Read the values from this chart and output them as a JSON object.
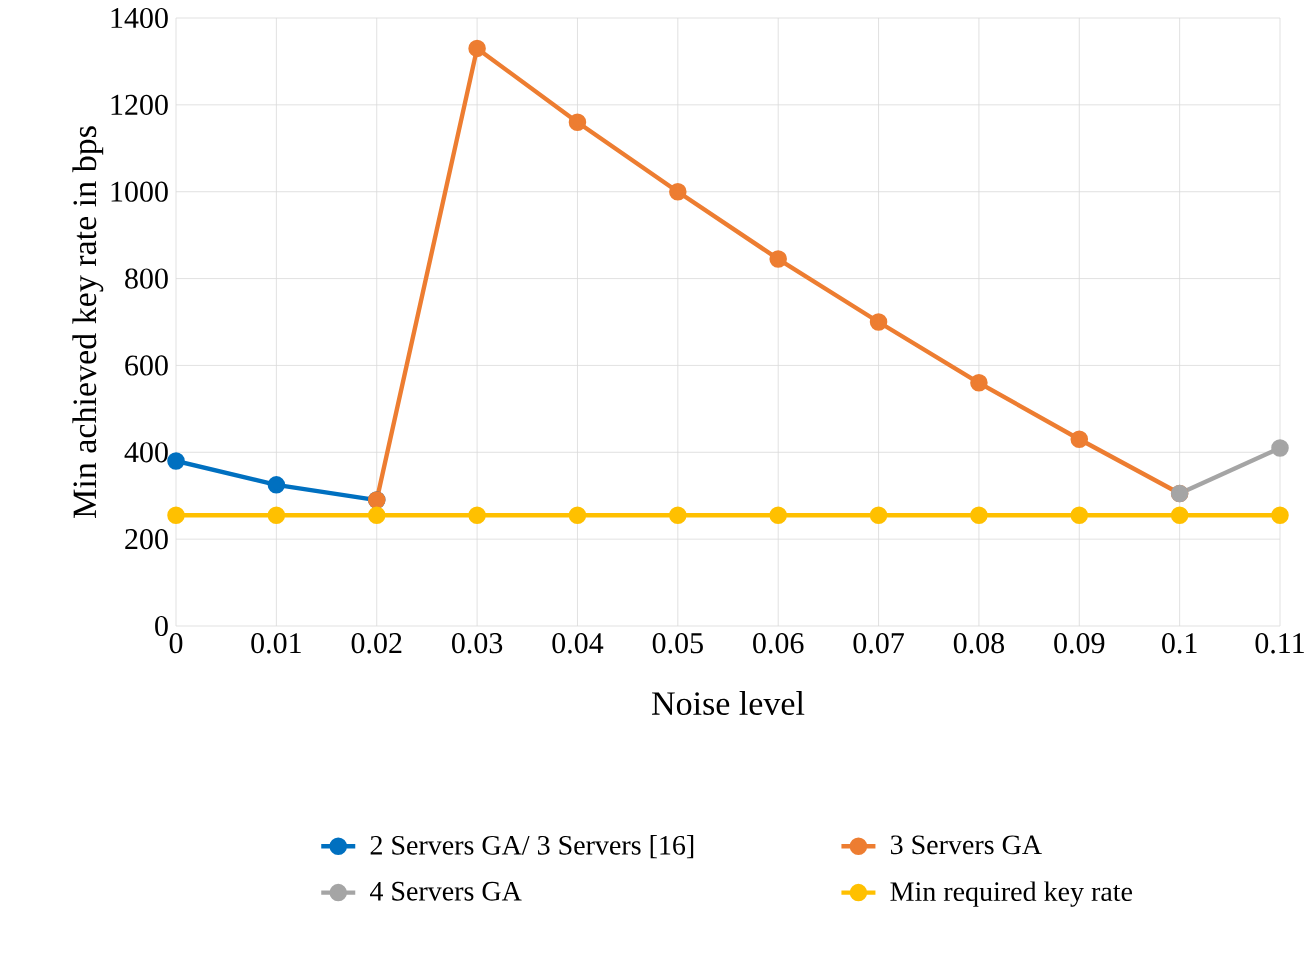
{
  "chart_data": {
    "type": "line",
    "xlabel": "Noise level",
    "ylabel": "Min achieved key rate in bps",
    "categories": [
      "0",
      "0.01",
      "0.02",
      "0.03",
      "0.04",
      "0.05",
      "0.06",
      "0.07",
      "0.08",
      "0.09",
      "0.1",
      "0.11"
    ],
    "series": [
      {
        "name": "2 Servers GA/ 3 Servers [16]",
        "color": "#0070c0",
        "values": [
          380,
          325,
          290,
          null,
          null,
          null,
          null,
          null,
          null,
          null,
          null,
          null
        ]
      },
      {
        "name": "3 Servers GA",
        "color": "#ed7d31",
        "values": [
          null,
          null,
          290,
          1330,
          1160,
          1000,
          845,
          700,
          560,
          430,
          305,
          null
        ]
      },
      {
        "name": "4 Servers GA",
        "color": "#a5a5a5",
        "values": [
          null,
          null,
          null,
          null,
          null,
          null,
          null,
          null,
          null,
          null,
          305,
          410
        ]
      },
      {
        "name": "Min required key rate",
        "color": "#ffc000",
        "values": [
          255,
          255,
          255,
          255,
          255,
          255,
          255,
          255,
          255,
          255,
          255,
          255
        ]
      }
    ],
    "ylim": [
      0,
      1400
    ],
    "yticks": [
      0,
      200,
      400,
      600,
      800,
      1000,
      1200,
      1400
    ],
    "grid": true,
    "legend": "bottom",
    "marker": "circle",
    "line_style": "solid"
  }
}
